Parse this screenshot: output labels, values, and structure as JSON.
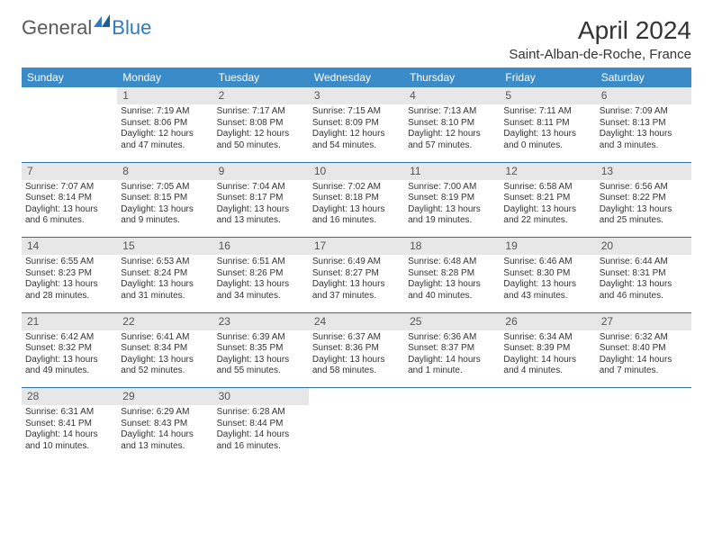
{
  "logo": {
    "text1": "General",
    "text2": "Blue"
  },
  "title": "April 2024",
  "location": "Saint-Alban-de-Roche, France",
  "colors": {
    "header_bg": "#3b8bc9",
    "header_fg": "#ffffff",
    "daynum_bg": "#e7e7e7",
    "border": "#2f6fa8",
    "logo_gray": "#5a5a5a",
    "logo_blue": "#2f7bbf",
    "text": "#333333"
  },
  "weekdays": [
    "Sunday",
    "Monday",
    "Tuesday",
    "Wednesday",
    "Thursday",
    "Friday",
    "Saturday"
  ],
  "weeks": [
    {
      "nums": [
        "",
        "1",
        "2",
        "3",
        "4",
        "5",
        "6"
      ],
      "cells": [
        null,
        {
          "sr": "Sunrise: 7:19 AM",
          "ss": "Sunset: 8:06 PM",
          "d1": "Daylight: 12 hours",
          "d2": "and 47 minutes."
        },
        {
          "sr": "Sunrise: 7:17 AM",
          "ss": "Sunset: 8:08 PM",
          "d1": "Daylight: 12 hours",
          "d2": "and 50 minutes."
        },
        {
          "sr": "Sunrise: 7:15 AM",
          "ss": "Sunset: 8:09 PM",
          "d1": "Daylight: 12 hours",
          "d2": "and 54 minutes."
        },
        {
          "sr": "Sunrise: 7:13 AM",
          "ss": "Sunset: 8:10 PM",
          "d1": "Daylight: 12 hours",
          "d2": "and 57 minutes."
        },
        {
          "sr": "Sunrise: 7:11 AM",
          "ss": "Sunset: 8:11 PM",
          "d1": "Daylight: 13 hours",
          "d2": "and 0 minutes."
        },
        {
          "sr": "Sunrise: 7:09 AM",
          "ss": "Sunset: 8:13 PM",
          "d1": "Daylight: 13 hours",
          "d2": "and 3 minutes."
        }
      ]
    },
    {
      "nums": [
        "7",
        "8",
        "9",
        "10",
        "11",
        "12",
        "13"
      ],
      "cells": [
        {
          "sr": "Sunrise: 7:07 AM",
          "ss": "Sunset: 8:14 PM",
          "d1": "Daylight: 13 hours",
          "d2": "and 6 minutes."
        },
        {
          "sr": "Sunrise: 7:05 AM",
          "ss": "Sunset: 8:15 PM",
          "d1": "Daylight: 13 hours",
          "d2": "and 9 minutes."
        },
        {
          "sr": "Sunrise: 7:04 AM",
          "ss": "Sunset: 8:17 PM",
          "d1": "Daylight: 13 hours",
          "d2": "and 13 minutes."
        },
        {
          "sr": "Sunrise: 7:02 AM",
          "ss": "Sunset: 8:18 PM",
          "d1": "Daylight: 13 hours",
          "d2": "and 16 minutes."
        },
        {
          "sr": "Sunrise: 7:00 AM",
          "ss": "Sunset: 8:19 PM",
          "d1": "Daylight: 13 hours",
          "d2": "and 19 minutes."
        },
        {
          "sr": "Sunrise: 6:58 AM",
          "ss": "Sunset: 8:21 PM",
          "d1": "Daylight: 13 hours",
          "d2": "and 22 minutes."
        },
        {
          "sr": "Sunrise: 6:56 AM",
          "ss": "Sunset: 8:22 PM",
          "d1": "Daylight: 13 hours",
          "d2": "and 25 minutes."
        }
      ]
    },
    {
      "nums": [
        "14",
        "15",
        "16",
        "17",
        "18",
        "19",
        "20"
      ],
      "cells": [
        {
          "sr": "Sunrise: 6:55 AM",
          "ss": "Sunset: 8:23 PM",
          "d1": "Daylight: 13 hours",
          "d2": "and 28 minutes."
        },
        {
          "sr": "Sunrise: 6:53 AM",
          "ss": "Sunset: 8:24 PM",
          "d1": "Daylight: 13 hours",
          "d2": "and 31 minutes."
        },
        {
          "sr": "Sunrise: 6:51 AM",
          "ss": "Sunset: 8:26 PM",
          "d1": "Daylight: 13 hours",
          "d2": "and 34 minutes."
        },
        {
          "sr": "Sunrise: 6:49 AM",
          "ss": "Sunset: 8:27 PM",
          "d1": "Daylight: 13 hours",
          "d2": "and 37 minutes."
        },
        {
          "sr": "Sunrise: 6:48 AM",
          "ss": "Sunset: 8:28 PM",
          "d1": "Daylight: 13 hours",
          "d2": "and 40 minutes."
        },
        {
          "sr": "Sunrise: 6:46 AM",
          "ss": "Sunset: 8:30 PM",
          "d1": "Daylight: 13 hours",
          "d2": "and 43 minutes."
        },
        {
          "sr": "Sunrise: 6:44 AM",
          "ss": "Sunset: 8:31 PM",
          "d1": "Daylight: 13 hours",
          "d2": "and 46 minutes."
        }
      ]
    },
    {
      "nums": [
        "21",
        "22",
        "23",
        "24",
        "25",
        "26",
        "27"
      ],
      "cells": [
        {
          "sr": "Sunrise: 6:42 AM",
          "ss": "Sunset: 8:32 PM",
          "d1": "Daylight: 13 hours",
          "d2": "and 49 minutes."
        },
        {
          "sr": "Sunrise: 6:41 AM",
          "ss": "Sunset: 8:34 PM",
          "d1": "Daylight: 13 hours",
          "d2": "and 52 minutes."
        },
        {
          "sr": "Sunrise: 6:39 AM",
          "ss": "Sunset: 8:35 PM",
          "d1": "Daylight: 13 hours",
          "d2": "and 55 minutes."
        },
        {
          "sr": "Sunrise: 6:37 AM",
          "ss": "Sunset: 8:36 PM",
          "d1": "Daylight: 13 hours",
          "d2": "and 58 minutes."
        },
        {
          "sr": "Sunrise: 6:36 AM",
          "ss": "Sunset: 8:37 PM",
          "d1": "Daylight: 14 hours",
          "d2": "and 1 minute."
        },
        {
          "sr": "Sunrise: 6:34 AM",
          "ss": "Sunset: 8:39 PM",
          "d1": "Daylight: 14 hours",
          "d2": "and 4 minutes."
        },
        {
          "sr": "Sunrise: 6:32 AM",
          "ss": "Sunset: 8:40 PM",
          "d1": "Daylight: 14 hours",
          "d2": "and 7 minutes."
        }
      ]
    },
    {
      "nums": [
        "28",
        "29",
        "30",
        "",
        "",
        "",
        ""
      ],
      "cells": [
        {
          "sr": "Sunrise: 6:31 AM",
          "ss": "Sunset: 8:41 PM",
          "d1": "Daylight: 14 hours",
          "d2": "and 10 minutes."
        },
        {
          "sr": "Sunrise: 6:29 AM",
          "ss": "Sunset: 8:43 PM",
          "d1": "Daylight: 14 hours",
          "d2": "and 13 minutes."
        },
        {
          "sr": "Sunrise: 6:28 AM",
          "ss": "Sunset: 8:44 PM",
          "d1": "Daylight: 14 hours",
          "d2": "and 16 minutes."
        },
        null,
        null,
        null,
        null
      ]
    }
  ]
}
